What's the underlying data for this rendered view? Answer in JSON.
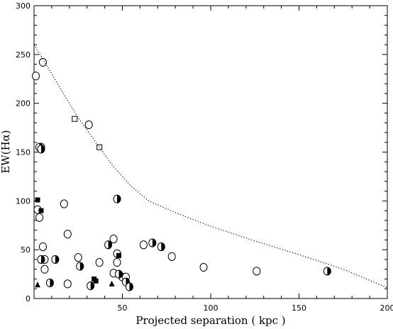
{
  "chart_data": {
    "type": "scatter",
    "title": "",
    "xlabel": "Projected separation ( kpc )",
    "ylabel": "EW(Hα)",
    "xlim": [
      0,
      200
    ],
    "ylim": [
      0,
      300
    ],
    "x_ticks": [
      50,
      100,
      150,
      200
    ],
    "y_ticks": [
      0,
      50,
      100,
      150,
      200,
      250,
      300
    ],
    "grid": false,
    "legend": "none",
    "colors": {
      "axis": "#000000",
      "marker_stroke": "#000000",
      "marker_fill": "#000000",
      "curve": "#000000"
    },
    "series": [
      {
        "marker": "open-circle",
        "points": [
          [
            1,
            228
          ],
          [
            5,
            242
          ],
          [
            2,
            91
          ],
          [
            3,
            83
          ],
          [
            5,
            53
          ],
          [
            6,
            40
          ],
          [
            6,
            30
          ],
          [
            17,
            97
          ],
          [
            19,
            66
          ],
          [
            25,
            42
          ],
          [
            31,
            178
          ],
          [
            37,
            37
          ],
          [
            45,
            61
          ],
          [
            45,
            26
          ],
          [
            47,
            46
          ],
          [
            47,
            37
          ],
          [
            50,
            22
          ],
          [
            52,
            22
          ],
          [
            62,
            55
          ],
          [
            78,
            43
          ],
          [
            96,
            32
          ],
          [
            126,
            28
          ],
          [
            4,
            155
          ],
          [
            19,
            15
          ]
        ]
      },
      {
        "marker": "half-filled-circle",
        "points": [
          [
            3,
            155
          ],
          [
            4,
            153
          ],
          [
            4,
            40
          ],
          [
            9,
            16
          ],
          [
            12,
            40
          ],
          [
            26,
            33
          ],
          [
            32,
            13
          ],
          [
            42,
            55
          ],
          [
            47,
            102
          ],
          [
            48,
            25
          ],
          [
            52,
            17
          ],
          [
            54,
            12
          ],
          [
            67,
            57
          ],
          [
            72,
            53
          ],
          [
            166,
            28
          ]
        ]
      },
      {
        "marker": "filled-square",
        "points": [
          [
            2,
            101
          ],
          [
            4,
            90
          ],
          [
            34,
            20
          ],
          [
            35,
            18
          ],
          [
            48,
            44
          ]
        ]
      },
      {
        "marker": "open-square",
        "points": [
          [
            23,
            184
          ],
          [
            37,
            155
          ]
        ]
      },
      {
        "marker": "filled-triangle",
        "points": [
          [
            2,
            14
          ],
          [
            44,
            15
          ]
        ]
      },
      {
        "marker": "dotted-curve",
        "points": [
          [
            0,
            260
          ],
          [
            5,
            245
          ],
          [
            15,
            215
          ],
          [
            25,
            185
          ],
          [
            35,
            160
          ],
          [
            45,
            135
          ],
          [
            55,
            115
          ],
          [
            65,
            100
          ],
          [
            80,
            88
          ],
          [
            100,
            74
          ],
          [
            125,
            59
          ],
          [
            150,
            45
          ],
          [
            175,
            30
          ],
          [
            200,
            11
          ]
        ]
      }
    ]
  }
}
